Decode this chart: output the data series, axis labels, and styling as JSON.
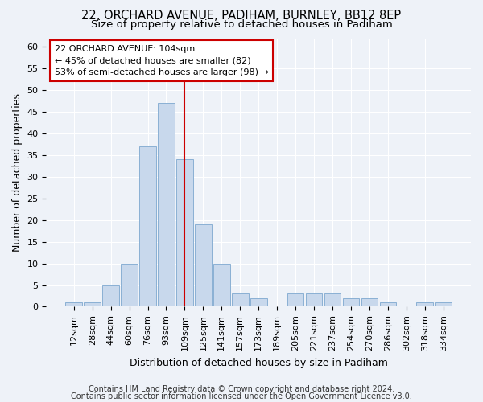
{
  "title1": "22, ORCHARD AVENUE, PADIHAM, BURNLEY, BB12 8EP",
  "title2": "Size of property relative to detached houses in Padiham",
  "xlabel": "Distribution of detached houses by size in Padiham",
  "ylabel": "Number of detached properties",
  "categories": [
    "12sqm",
    "28sqm",
    "44sqm",
    "60sqm",
    "76sqm",
    "93sqm",
    "109sqm",
    "125sqm",
    "141sqm",
    "157sqm",
    "173sqm",
    "189sqm",
    "205sqm",
    "221sqm",
    "237sqm",
    "254sqm",
    "270sqm",
    "286sqm",
    "302sqm",
    "318sqm",
    "334sqm"
  ],
  "values": [
    1,
    1,
    5,
    10,
    37,
    47,
    34,
    19,
    10,
    3,
    2,
    0,
    3,
    3,
    3,
    2,
    2,
    1,
    0,
    1,
    1
  ],
  "bar_color": "#c8d8ec",
  "bar_edge_color": "#8ab0d4",
  "vline_x": 6.0,
  "vline_color": "#cc0000",
  "annotation_lines": [
    "22 ORCHARD AVENUE: 104sqm",
    "← 45% of detached houses are smaller (82)",
    "53% of semi-detached houses are larger (98) →"
  ],
  "annotation_box_color": "#ffffff",
  "annotation_box_edge": "#cc0000",
  "ylim": [
    0,
    62
  ],
  "yticks": [
    0,
    5,
    10,
    15,
    20,
    25,
    30,
    35,
    40,
    45,
    50,
    55,
    60
  ],
  "footer1": "Contains HM Land Registry data © Crown copyright and database right 2024.",
  "footer2": "Contains public sector information licensed under the Open Government Licence v3.0.",
  "background_color": "#eef2f8",
  "grid_color": "#ffffff",
  "title1_fontsize": 10.5,
  "title2_fontsize": 9.5,
  "axis_label_fontsize": 9,
  "tick_fontsize": 8,
  "annot_fontsize": 8,
  "footer_fontsize": 7
}
